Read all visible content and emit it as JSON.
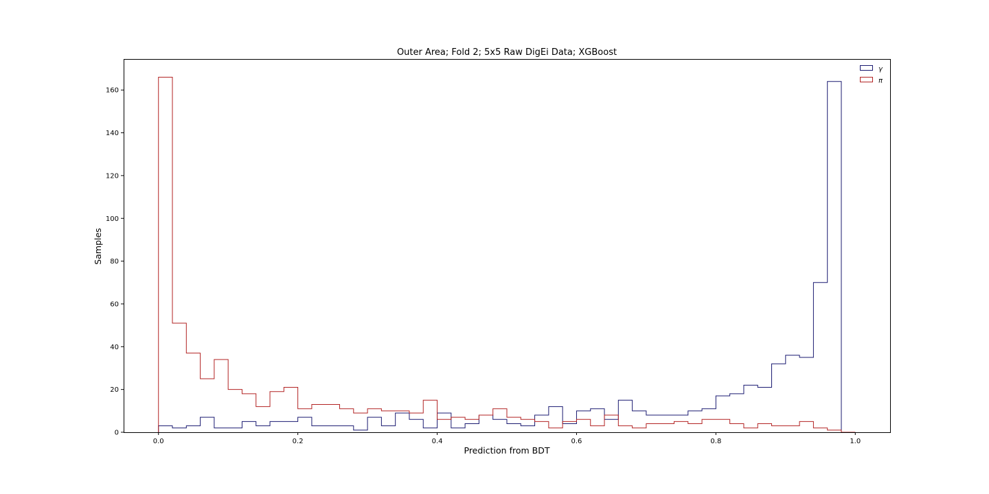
{
  "chart_data": {
    "type": "histogram-step",
    "title": "Outer Area; Fold 2; 5x5 Raw DigEi Data; XGBoost",
    "xlabel": "Prediction from BDT",
    "ylabel": "Samples",
    "xlim": [
      -0.05,
      1.05
    ],
    "ylim": [
      0,
      174.5
    ],
    "bins": {
      "start": 0.0,
      "width": 0.02,
      "count": 50
    },
    "xticks": [
      0.0,
      0.2,
      0.4,
      0.6,
      0.8,
      1.0
    ],
    "xtick_labels": [
      "0.0",
      "0.2",
      "0.4",
      "0.6",
      "0.8",
      "1.0"
    ],
    "yticks": [
      0,
      20,
      40,
      60,
      80,
      100,
      120,
      140,
      160
    ],
    "ytick_labels": [
      "0",
      "20",
      "40",
      "60",
      "80",
      "100",
      "120",
      "140",
      "160"
    ],
    "grid": false,
    "legend_position": "top-right",
    "series": [
      {
        "name": "γ",
        "color": "#191970",
        "values": [
          3,
          2,
          3,
          7,
          2,
          2,
          5,
          3,
          5,
          5,
          7,
          3,
          3,
          3,
          1,
          7,
          3,
          9,
          6,
          2,
          9,
          2,
          4,
          8,
          6,
          4,
          3,
          8,
          12,
          4,
          10,
          11,
          6,
          15,
          10,
          8,
          8,
          8,
          10,
          11,
          17,
          18,
          22,
          21,
          32,
          36,
          35,
          70,
          164,
          0
        ]
      },
      {
        "name": "π",
        "color": "#b22222",
        "values": [
          166,
          51,
          37,
          25,
          34,
          20,
          18,
          12,
          19,
          21,
          11,
          13,
          13,
          11,
          9,
          11,
          10,
          10,
          9,
          15,
          6,
          7,
          6,
          8,
          11,
          7,
          6,
          5,
          2,
          5,
          6,
          3,
          8,
          3,
          2,
          4,
          4,
          5,
          4,
          6,
          6,
          4,
          2,
          4,
          3,
          3,
          5,
          2,
          1,
          0
        ]
      }
    ]
  }
}
